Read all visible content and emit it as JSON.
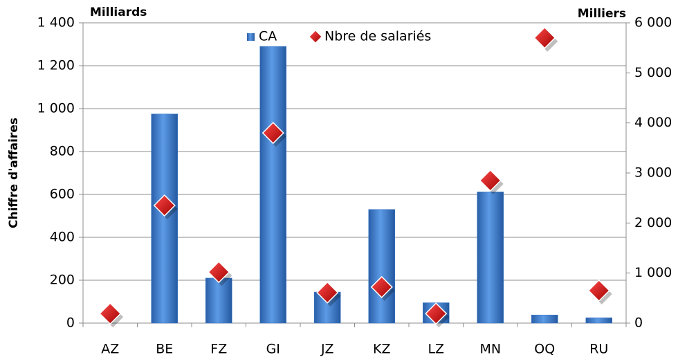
{
  "chart_data": {
    "type": "bar",
    "y_label": "Chiffre d'affaires",
    "y_unit": "Milliards",
    "y2_unit": "Milliers",
    "categories": [
      "AZ",
      "BE",
      "FZ",
      "GI",
      "JZ",
      "KZ",
      "LZ",
      "MN",
      "OQ",
      "RU"
    ],
    "series": [
      {
        "name": "CA",
        "color": "#3a78c8",
        "values": [
          0,
          975,
          210,
          1290,
          145,
          530,
          95,
          612,
          38,
          25
        ]
      },
      {
        "name": "Nbre de salariés",
        "color": "#d40000",
        "marker": "diamond",
        "axis": "y2",
        "values": [
          190,
          2350,
          1020,
          3800,
          610,
          720,
          190,
          2850,
          5700,
          650
        ]
      }
    ],
    "ylim": [
      0,
      1400
    ],
    "yticks": [
      0,
      200,
      400,
      600,
      800,
      {
        "value": 1000,
        "label": "1 000"
      },
      {
        "value": 1200,
        "label": "1 200"
      },
      {
        "value": 1400,
        "label": "1 400"
      }
    ],
    "y2lim": [
      0,
      6000
    ],
    "y2ticks": [
      0,
      {
        "value": 1000,
        "label": "1 000"
      },
      {
        "value": 2000,
        "label": "2 000"
      },
      {
        "value": 3000,
        "label": "3 000"
      },
      {
        "value": 4000,
        "label": "4 000"
      },
      {
        "value": 5000,
        "label": "5 000"
      },
      {
        "value": 6000,
        "label": "6 000"
      }
    ],
    "grid": true,
    "legend": "top"
  }
}
